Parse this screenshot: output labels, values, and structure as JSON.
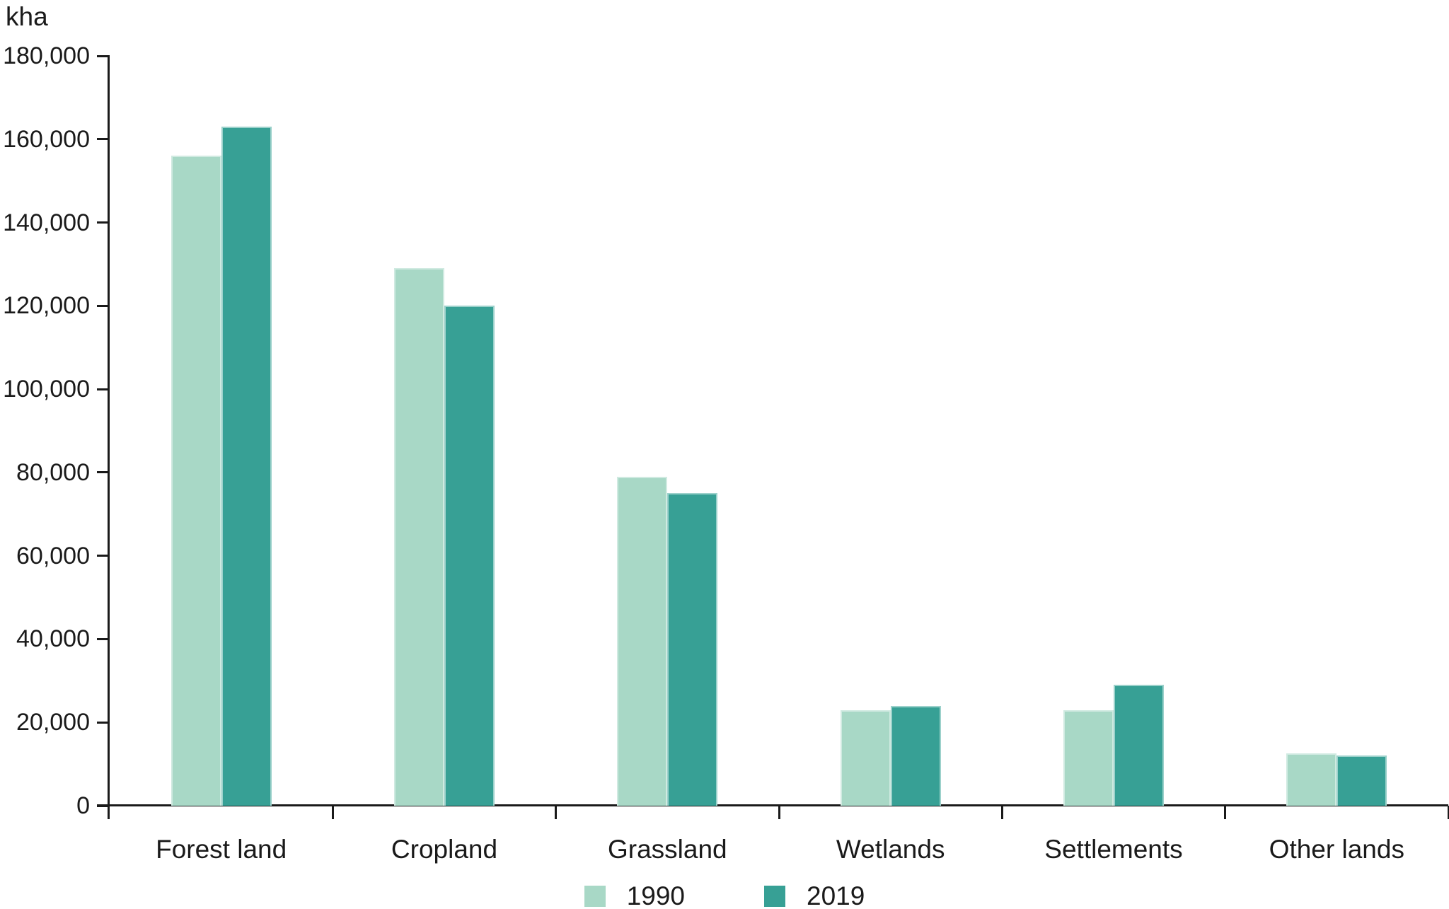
{
  "title": "kha",
  "legend": {
    "position": "bottom",
    "items": [
      "1990",
      "2019"
    ]
  },
  "chart_data": {
    "type": "bar",
    "title": "kha",
    "xlabel": "",
    "ylabel": "kha",
    "categories": [
      "Forest land",
      "Cropland",
      "Grassland",
      "Wetlands",
      "Settlements",
      "Other lands"
    ],
    "series": [
      {
        "name": "1990",
        "color": "#A8D8C6",
        "values": [
          156000,
          129000,
          79000,
          23000,
          23000,
          12500
        ]
      },
      {
        "name": "2019",
        "color": "#37A095",
        "values": [
          163000,
          120000,
          75000,
          24000,
          29000,
          12000
        ]
      }
    ],
    "ylim": [
      0,
      180000
    ],
    "ytick_step": 20000,
    "ytick_labels": [
      "0",
      "20,000",
      "40,000",
      "60,000",
      "80,000",
      "100,000",
      "120,000",
      "140,000",
      "160,000",
      "180,000"
    ],
    "grid": false,
    "legend_position": "bottom",
    "axis_color": "#1a1a1a"
  }
}
